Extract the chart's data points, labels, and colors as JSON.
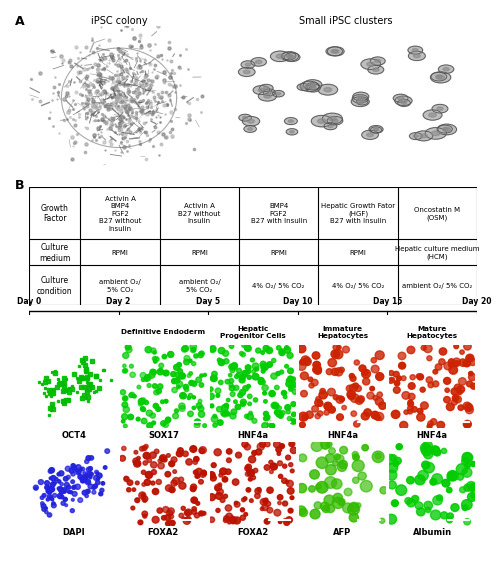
{
  "panel_A_label": "A",
  "panel_B_label": "B",
  "img_label1": "iPSC colony",
  "img_label2": "Small iPSC clusters",
  "table_row_headers": [
    "Growth\nFactor",
    "Culture\nmedium",
    "Culture\ncondition"
  ],
  "table_col_data": [
    [
      "Activin A\nBMP4\nFGF2\nB27 without\nInsulin",
      "RPMI",
      "ambient O₂/\n5% CO₂"
    ],
    [
      "Activin A\nB27 without\nInsulin",
      "RPMI",
      "ambient O₂/\n5% CO₂"
    ],
    [
      "BMP4\nFGF2\nB27 with Insulin",
      "RPMI",
      "4% O₂/ 5% CO₂"
    ],
    [
      "Hepatic Growth Fator\n(HGF)\nB27 with Insulin",
      "RPMI",
      "4% O₂/ 5% CO₂"
    ],
    [
      "Oncostatin M\n(OSM)",
      "Hepatic culture medium\n(HCM)",
      "ambient O₂/ 5% CO₂"
    ]
  ],
  "timeline_days": [
    "Day 0",
    "Day 2",
    "Day 5",
    "Day 10",
    "Day 15",
    "Day 20"
  ],
  "stage_labels": [
    "",
    "Definitive Endoderm",
    "Hepatic\nProgenitor Cells",
    "Immature\nHepatocytes",
    "Mature\nHepatocytes"
  ],
  "top_markers": [
    "OCT4",
    "SOX17",
    "HNF4a",
    "HNF4a",
    "HNF4a"
  ],
  "bottom_markers": [
    "DAPI",
    "FOXA2",
    "FOXA2",
    "AFP",
    "Albumin"
  ],
  "top_colors": [
    "#00bb00",
    "#00cc00",
    "#00cc00",
    "#cc2200",
    "#cc2200"
  ],
  "bottom_colors": [
    "#2222dd",
    "#bb1100",
    "#bb1100",
    "#33bb00",
    "#00cc00"
  ],
  "top_bg_colors": [
    "#001500",
    "#001500",
    "#001500",
    "#150000",
    "#150000"
  ],
  "bottom_bg_colors": [
    "#000015",
    "#150000",
    "#150000",
    "#001500",
    "#001500"
  ],
  "bg_color": "#ffffff",
  "img1_bg": "#b8b8b8",
  "img2_bg": "#c8c8c8"
}
